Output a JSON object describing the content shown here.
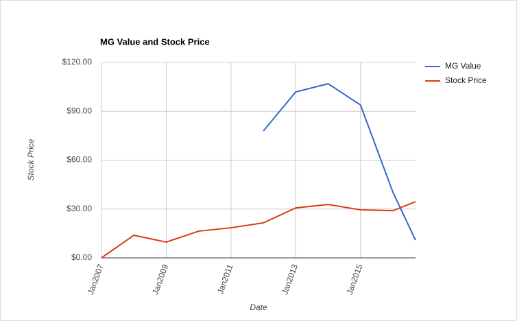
{
  "chart_data": {
    "type": "line",
    "title": "MG Value and Stock Price",
    "x_label": "Date",
    "y_label": "Stock Price",
    "x": [
      2007,
      2008,
      2009,
      2010,
      2011,
      2012,
      2013,
      2014,
      2015,
      2016,
      2016.7
    ],
    "series": [
      {
        "name": "MG Value",
        "color": "#3366cc",
        "values": [
          null,
          null,
          null,
          null,
          null,
          77.9,
          101.9,
          106.9,
          93.9,
          40.4,
          10.9
        ]
      },
      {
        "name": "Stock Price",
        "color": "#dc3912",
        "values": [
          0,
          13.9,
          9.7,
          16.4,
          18.5,
          21.5,
          30.7,
          32.8,
          29.5,
          29.0,
          34.5
        ]
      }
    ],
    "xlim": [
      2007,
      2016.7
    ],
    "xticks": [
      {
        "value": 2007,
        "label": "Jan2007"
      },
      {
        "value": 2009,
        "label": "Jan2009"
      },
      {
        "value": 2011,
        "label": "Jan2011"
      },
      {
        "value": 2013,
        "label": "Jan2013"
      },
      {
        "value": 2015,
        "label": "Jan2015"
      }
    ],
    "ylim": [
      0,
      120
    ],
    "yticks": [
      {
        "value": 0,
        "label": "$0.00"
      },
      {
        "value": 30,
        "label": "$30.00"
      },
      {
        "value": 60,
        "label": "$60.00"
      },
      {
        "value": 90,
        "label": "$90.00"
      },
      {
        "value": 120,
        "label": "$120.00"
      }
    ],
    "grid": true,
    "legend": "right"
  }
}
